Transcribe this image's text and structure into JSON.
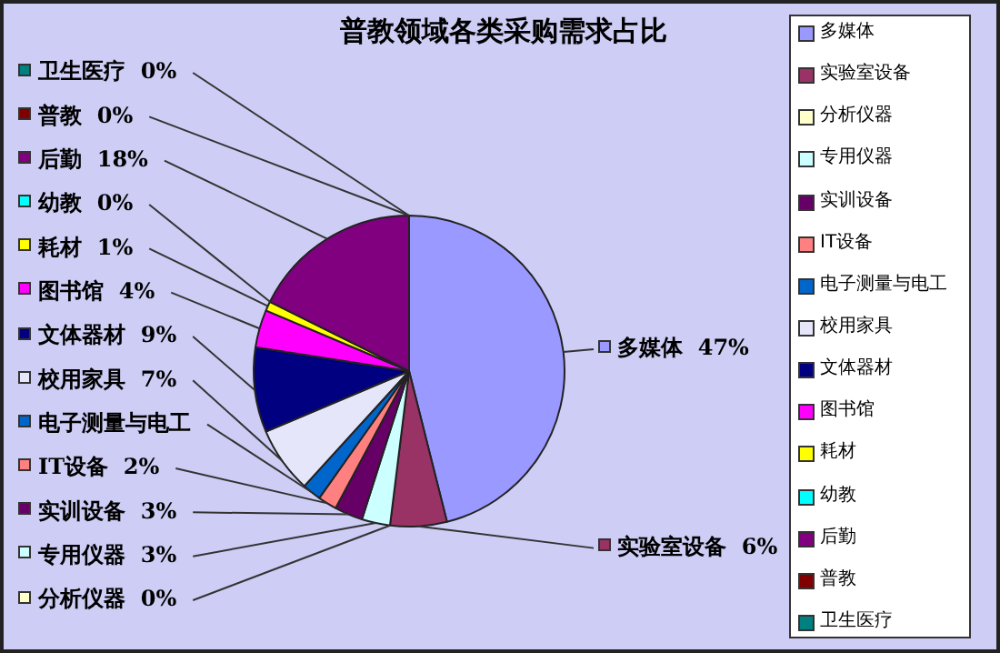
{
  "chart_data": {
    "type": "pie",
    "title": "普教领域各类采购需求占比",
    "categories": [
      "多媒体",
      "实验室设备",
      "分析仪器",
      "专用仪器",
      "实训设备",
      "IT设备",
      "电子测量与电工",
      "校用家具",
      "文体器材",
      "图书馆",
      "耗材",
      "幼教",
      "后勤",
      "普教",
      "卫生医疗"
    ],
    "values": [
      47,
      6,
      0,
      3,
      3,
      2,
      2,
      7,
      9,
      4,
      1,
      0,
      18,
      0,
      0
    ],
    "value_labels": [
      "47%",
      "6%",
      "0%",
      "3%",
      "3%",
      "2%",
      null,
      "7%",
      "9%",
      "4%",
      "1%",
      "0%",
      "18%",
      "0%",
      "0%"
    ],
    "colors": [
      "#9999ff",
      "#993366",
      "#ffffcc",
      "#ccffff",
      "#660066",
      "#ff8080",
      "#0066cc",
      "#e6e6fa",
      "#000080",
      "#ff00ff",
      "#ffff00",
      "#00ffff",
      "#800080",
      "#800000",
      "#008080"
    ],
    "legend": "right"
  }
}
